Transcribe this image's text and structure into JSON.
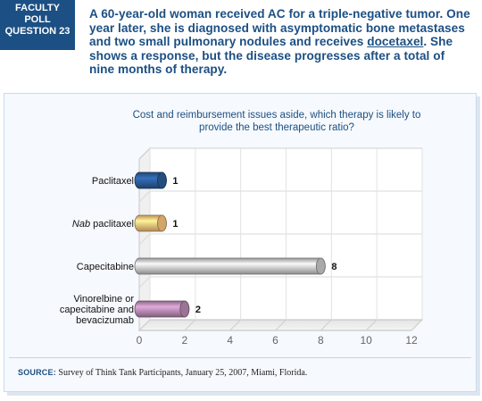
{
  "poll_badge": {
    "lines": [
      "FACULTY",
      "POLL",
      "QUESTION 23"
    ]
  },
  "question": {
    "before": "A 60-year-old woman received AC for a triple-negative tumor. One year later, she is diagnosed with asymptomatic bone metastases and two small pulmonary nodules and receives ",
    "underlined": "docetaxel",
    "after": ". She shows a response, but the disease progresses after a total of nine months of therapy."
  },
  "source": {
    "label": "SOURCE:",
    "text": "Survey of Think Tank Participants, January 25, 2007, Miami, Florida."
  },
  "colors": {
    "brand_blue": "#1c4f83",
    "bar_paclitaxel": "#2a5a96",
    "bar_nab": "#f7c27a",
    "bar_cape": "#c7c7c7",
    "bar_combo": "#b588b0"
  },
  "chart_data": {
    "type": "bar",
    "orientation": "horizontal",
    "title": "Cost and reimbursement issues aside, which therapy is likely to provide the best therapeutic ratio?",
    "categories": [
      "Paclitaxel",
      "Nab paclitaxel",
      "Capecitabine",
      "Vinorelbine or capecitabine and bevacizumab"
    ],
    "category_lines": [
      [
        "Paclitaxel"
      ],
      [
        "Nab paclitaxel"
      ],
      [
        "Capecitabine"
      ],
      [
        "Vinorelbine or",
        "capecitabine and",
        "bevacizumab"
      ]
    ],
    "values": [
      1,
      1,
      8,
      2
    ],
    "bar_colors": [
      "#2a5a96",
      "#f7c27a",
      "#c7c7c7",
      "#b588b0"
    ],
    "xlim": [
      0,
      12
    ],
    "xticks": [
      0,
      2,
      4,
      6,
      8,
      10,
      12
    ],
    "xlabel": "",
    "ylabel": "",
    "grid": true,
    "style": "3d-cylinder"
  }
}
